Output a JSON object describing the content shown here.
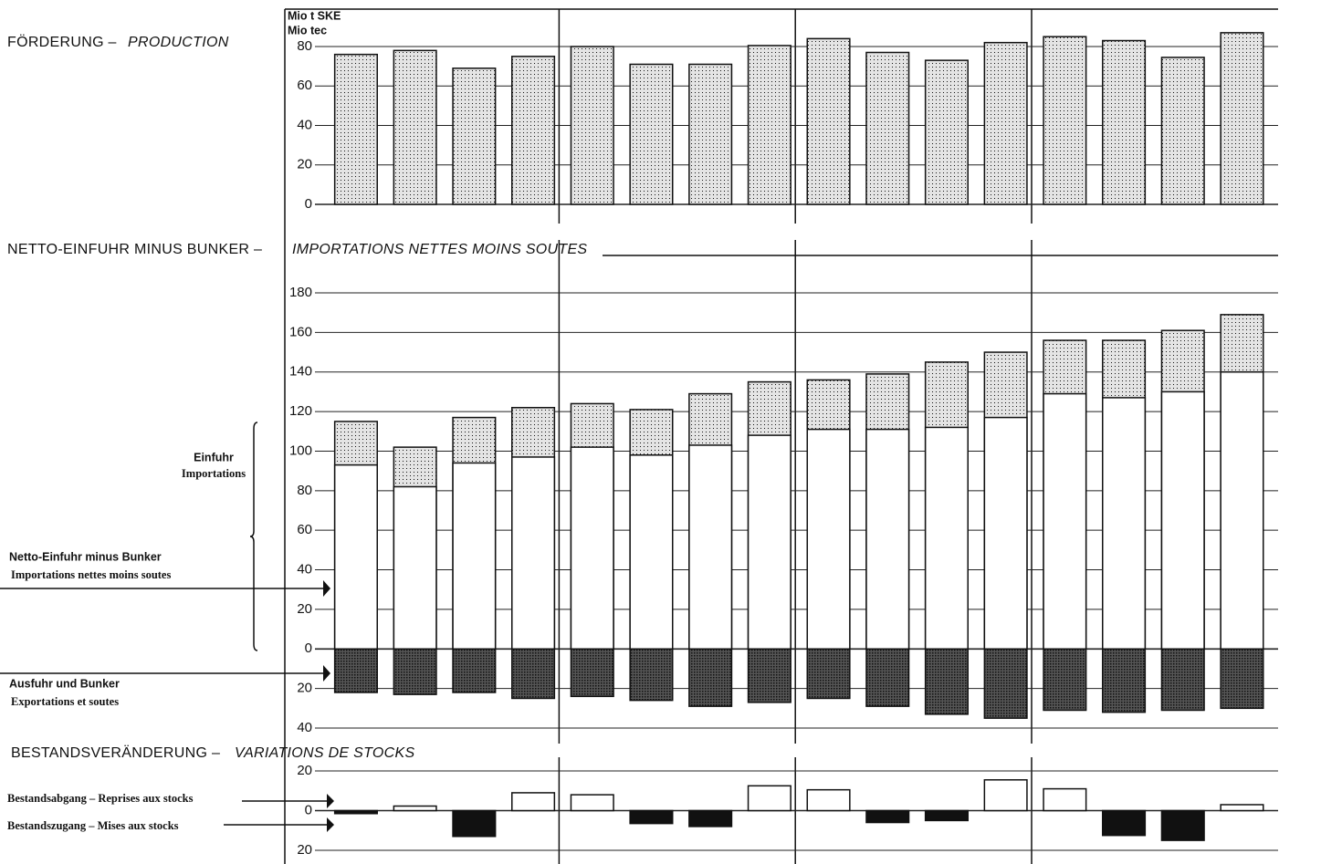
{
  "chart_data": [
    {
      "type": "bar",
      "title_de": "FÖRDERUNG –",
      "title_fr": "PRODUCTION",
      "unit_labels": [
        "Mio t SKE",
        "Mio tec"
      ],
      "categories": [
        null,
        null,
        null,
        null,
        null,
        null,
        null,
        null,
        null,
        null,
        null,
        null,
        null,
        null,
        null,
        null
      ],
      "values": [
        76,
        78,
        69,
        75,
        80,
        71,
        71,
        80.5,
        84,
        77,
        73,
        82,
        85,
        83,
        74.5,
        87
      ],
      "color": "#e4e4e4",
      "pattern": "dotted",
      "ylim": [
        0,
        80
      ],
      "yticks": [
        0,
        20,
        40,
        60,
        80
      ],
      "grid": true
    },
    {
      "type": "bar",
      "overlay": true,
      "title_de": "NETTO-EINFUHR MINUS BUNKER –",
      "title_fr": "IMPORTATIONS NETTES MOINS SOUTES",
      "categories": [
        null,
        null,
        null,
        null,
        null,
        null,
        null,
        null,
        null,
        null,
        null,
        null,
        null,
        null,
        null,
        null
      ],
      "series": [
        {
          "name": "Einfuhr",
          "name_fr": "Importations",
          "color": "#e4e4e4",
          "pattern": "dotted",
          "values": [
            115,
            102,
            117,
            122,
            124,
            121,
            129,
            135,
            136,
            139,
            145,
            150,
            156,
            156,
            161,
            169
          ]
        },
        {
          "name": "Netto-Einfuhr minus Bunker",
          "name_fr": "Importations nettes moins soutes",
          "color": "#ffffff",
          "values": [
            93,
            82,
            94,
            97,
            102,
            98,
            103,
            108,
            111,
            111,
            112,
            117,
            129,
            127,
            130,
            140
          ]
        },
        {
          "name": "Ausfuhr und Bunker",
          "name_fr": "Exportations et soutes",
          "color": "#555555",
          "pattern": "dense",
          "values": [
            -22,
            -23,
            -22,
            -25,
            -24,
            -26,
            -29,
            -27,
            -25,
            -29,
            -33,
            -35,
            -31,
            -32,
            -31,
            -30
          ]
        }
      ],
      "ylim": [
        -40,
        180
      ],
      "yticks": [
        {
          "value": -40,
          "label": "40"
        },
        {
          "value": -20,
          "label": "20"
        },
        0,
        20,
        40,
        60,
        80,
        100,
        120,
        140,
        160,
        180
      ],
      "grid": true
    },
    {
      "type": "bar",
      "title_de": "BESTANDSVERÄNDERUNG –",
      "title_fr": "VARIATIONS DE STOCKS",
      "positive_label": "Bestandsabgang – Reprises aux stocks",
      "negative_label": "Bestandszugang – Mises aux stocks",
      "categories": [
        null,
        null,
        null,
        null,
        null,
        null,
        null,
        null,
        null,
        null,
        null,
        null,
        null,
        null,
        null,
        null
      ],
      "values": [
        -1.5,
        2.3,
        -13,
        9,
        8,
        -6.5,
        -8,
        12.5,
        10.5,
        -6,
        -5,
        15.5,
        11,
        -12.5,
        -15,
        3
      ],
      "positive_color": "#ffffff",
      "negative_color": "#111111",
      "ylim": [
        -20,
        20
      ],
      "yticks": [
        {
          "value": -20,
          "label": "20"
        },
        0,
        20
      ],
      "grid": true
    }
  ]
}
